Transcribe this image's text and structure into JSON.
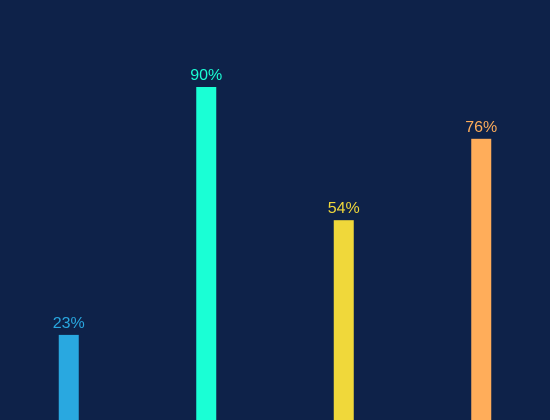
{
  "chart_data": {
    "type": "bar",
    "categories": [
      null,
      null,
      null,
      null
    ],
    "values": [
      23,
      90,
      54,
      76
    ],
    "value_labels": [
      "23%",
      "90%",
      "54%",
      "76%"
    ],
    "colors": [
      "#29a8e0",
      "#1affd5",
      "#f0d83a",
      "#ffad5a"
    ],
    "ylim": [
      0,
      100
    ]
  }
}
